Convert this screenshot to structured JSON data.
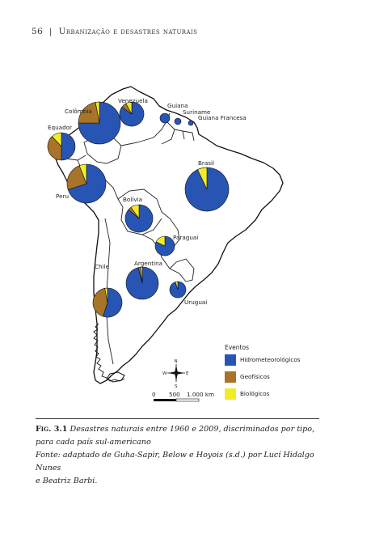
{
  "header": {
    "page_number": "56",
    "separator": "|",
    "title": "Urbanização e desastres naturais"
  },
  "colors": {
    "hydro": "#2855b4",
    "geo": "#a8742a",
    "bio": "#f1ec2a"
  },
  "countries": [
    {
      "label": "Colômbia",
      "shares": {
        "hydro": 0.75,
        "geo": 0.22,
        "bio": 0.03
      }
    },
    {
      "label": "Venezuela",
      "shares": {
        "hydro": 0.85,
        "geo": 0.07,
        "bio": 0.08
      }
    },
    {
      "label": "Guiana",
      "shares": {
        "hydro": 1.0,
        "geo": 0,
        "bio": 0
      }
    },
    {
      "label": "Suriname",
      "shares": {
        "hydro": 1.0,
        "geo": 0,
        "bio": 0
      }
    },
    {
      "label": "Guiana Francesa",
      "shares": {
        "hydro": 1.0,
        "geo": 0,
        "bio": 0
      }
    },
    {
      "label": "Equador",
      "shares": {
        "hydro": 0.5,
        "geo": 0.38,
        "bio": 0.12
      }
    },
    {
      "label": "Peru",
      "shares": {
        "hydro": 0.7,
        "geo": 0.24,
        "bio": 0.06
      }
    },
    {
      "label": "Brasil",
      "shares": {
        "hydro": 0.93,
        "geo": 0,
        "bio": 0.07
      }
    },
    {
      "label": "Bolívia",
      "shares": {
        "hydro": 0.86,
        "geo": 0.04,
        "bio": 0.1
      }
    },
    {
      "label": "Paraguai",
      "shares": {
        "hydro": 0.82,
        "geo": 0,
        "bio": 0.18
      }
    },
    {
      "label": "Argentina",
      "shares": {
        "hydro": 0.96,
        "geo": 0.02,
        "bio": 0.02
      }
    },
    {
      "label": "Chile",
      "shares": {
        "hydro": 0.55,
        "geo": 0.42,
        "bio": 0.03
      }
    },
    {
      "label": "Uruguai",
      "shares": {
        "hydro": 0.95,
        "geo": 0,
        "bio": 0.05
      }
    }
  ],
  "legend": {
    "title": "Eventos",
    "items": [
      {
        "label": "Hidrometeorológicos",
        "color": "#2855b4"
      },
      {
        "label": "Geofísicos",
        "color": "#a8742a"
      },
      {
        "label": "Biológicos",
        "color": "#f1ec2a"
      }
    ]
  },
  "scale_bar": {
    "ticks": [
      "0",
      "500",
      "1.000 km"
    ]
  },
  "compass": {
    "n": "N",
    "s": "S",
    "e": "E",
    "w": "W"
  },
  "caption": {
    "fig_label": "Fig. 3.1",
    "line1": "Desastres naturais entre 1960 e 2009, discriminados por tipo,",
    "line2": "para cada país sul-americano",
    "line3": "Fonte: adaptado de Guha-Sapir, Below e Hoyois (s.d.) por Lucí Hidalgo Nunes",
    "line4": "e Beatriz Barbi."
  }
}
